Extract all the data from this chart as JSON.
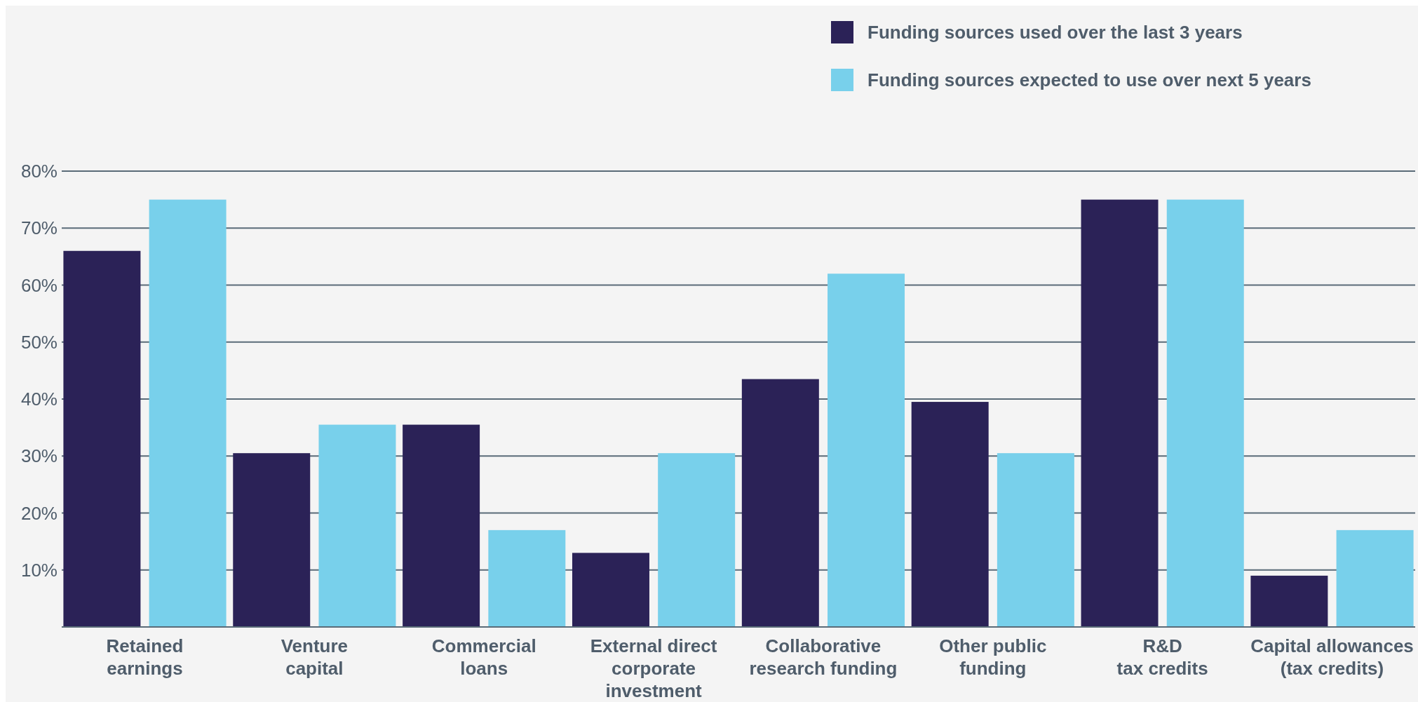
{
  "chart_data": {
    "type": "bar",
    "categories": [
      "Retained\nearnings",
      "Venture\ncapital",
      "Commercial\nloans",
      "External direct\ncorporate\ninvestment",
      "Collaborative\nresearch funding",
      "Other public\nfunding",
      "R&D\ntax credits",
      "Capital allowances\n(tax credits)"
    ],
    "series": [
      {
        "name": "Funding sources used over the last 3 years",
        "color": "#2b2257",
        "values": [
          66,
          30.5,
          35.5,
          13,
          43.5,
          39.5,
          75,
          9
        ]
      },
      {
        "name": "Funding sources expected to use over next 5 years",
        "color": "#78d0eb",
        "values": [
          75,
          35.5,
          17,
          30.5,
          62,
          30.5,
          75,
          17
        ]
      }
    ],
    "ylim": [
      0,
      80
    ],
    "yticks": [
      {
        "value": 10,
        "label": "10%"
      },
      {
        "value": 20,
        "label": "20%"
      },
      {
        "value": 30,
        "label": "30%"
      },
      {
        "value": 40,
        "label": "40%"
      },
      {
        "value": 50,
        "label": "50%"
      },
      {
        "value": 60,
        "label": "60%"
      },
      {
        "value": 70,
        "label": "70%"
      },
      {
        "value": 80,
        "label": "80%"
      }
    ],
    "grid": "y",
    "legend": "top right"
  }
}
